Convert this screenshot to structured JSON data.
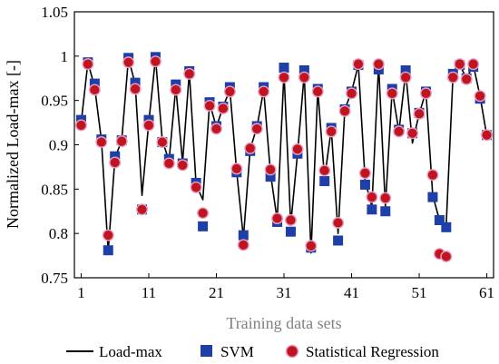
{
  "chart_data": {
    "type": "line",
    "title": "",
    "xlabel": "Training data sets",
    "ylabel": "Normalized Load-max [-]",
    "xlim": [
      0,
      62
    ],
    "ylim": [
      0.75,
      1.05
    ],
    "xticks": [
      1,
      11,
      21,
      31,
      41,
      51,
      61
    ],
    "yticks": [
      0.75,
      0.8,
      0.85,
      0.9,
      0.95,
      1,
      1.05
    ],
    "ytick_labels": [
      "0.75",
      "0.8",
      "0.85",
      "0.9",
      "0.95",
      "1",
      "1.05"
    ],
    "grid": false,
    "legend_position": "bottom",
    "x": [
      1,
      2,
      3,
      4,
      5,
      6,
      7,
      8,
      9,
      10,
      11,
      12,
      13,
      14,
      15,
      16,
      17,
      18,
      19,
      20,
      21,
      22,
      23,
      24,
      25,
      26,
      27,
      28,
      29,
      30,
      31,
      32,
      33,
      34,
      35,
      36,
      37,
      38,
      39,
      40,
      41,
      42,
      43,
      44,
      45,
      46,
      47,
      48,
      49,
      50,
      51,
      52,
      53,
      54,
      55,
      56,
      57,
      58,
      59,
      60,
      61
    ],
    "series": [
      {
        "name": "Load-max",
        "style": "line",
        "color": "#000000",
        "values": [
          0.925,
          0.993,
          0.965,
          0.905,
          0.78,
          0.885,
          0.905,
          0.998,
          0.968,
          0.843,
          0.925,
          0.998,
          0.905,
          0.882,
          0.965,
          0.88,
          0.982,
          0.855,
          0.838,
          0.947,
          0.92,
          0.943,
          0.962,
          0.87,
          0.795,
          0.895,
          0.92,
          0.962,
          0.868,
          0.815,
          0.982,
          0.81,
          0.89,
          0.98,
          0.778,
          0.962,
          0.862,
          0.918,
          0.8,
          0.94,
          0.96,
          0.99,
          0.86,
          0.83,
          0.99,
          0.83,
          0.962,
          0.915,
          0.982,
          0.902,
          0.935,
          0.96,
          0.843,
          0.815,
          0.81,
          0.978,
          0.99,
          0.975,
          0.99,
          0.955,
          0.91
        ]
      },
      {
        "name": "SVM",
        "style": "square",
        "color": "#1f3fa8",
        "values": [
          0.928,
          0.993,
          0.969,
          0.906,
          0.781,
          0.887,
          0.905,
          0.998,
          0.97,
          0.827,
          0.928,
          0.999,
          0.903,
          0.884,
          0.968,
          0.879,
          0.983,
          0.857,
          0.808,
          0.948,
          0.921,
          0.943,
          0.965,
          0.869,
          0.798,
          0.893,
          0.921,
          0.965,
          0.864,
          0.813,
          0.987,
          0.802,
          0.89,
          0.984,
          0.784,
          0.963,
          0.859,
          0.919,
          0.792,
          0.94,
          0.96,
          0.99,
          0.855,
          0.827,
          0.985,
          0.825,
          0.963,
          0.917,
          0.984,
          0.913,
          0.936,
          0.96,
          0.841,
          0.815,
          0.807,
          0.98,
          0.99,
          0.975,
          0.988,
          0.952,
          0.911
        ]
      },
      {
        "name": "Statistical Regression",
        "style": "circle",
        "color": "#c0141e",
        "values": [
          0.922,
          0.991,
          0.962,
          0.903,
          0.798,
          0.88,
          0.904,
          0.993,
          0.963,
          0.827,
          0.922,
          0.994,
          0.903,
          0.879,
          0.962,
          0.877,
          0.98,
          0.852,
          0.823,
          0.944,
          0.918,
          0.941,
          0.96,
          0.873,
          0.787,
          0.896,
          0.918,
          0.96,
          0.872,
          0.817,
          0.976,
          0.815,
          0.895,
          0.976,
          0.786,
          0.96,
          0.871,
          0.915,
          0.812,
          0.938,
          0.958,
          0.991,
          0.868,
          0.841,
          0.991,
          0.84,
          0.958,
          0.915,
          0.976,
          0.913,
          0.935,
          0.958,
          0.866,
          0.777,
          0.774,
          0.976,
          0.991,
          0.974,
          0.991,
          0.955,
          0.911
        ]
      }
    ]
  }
}
